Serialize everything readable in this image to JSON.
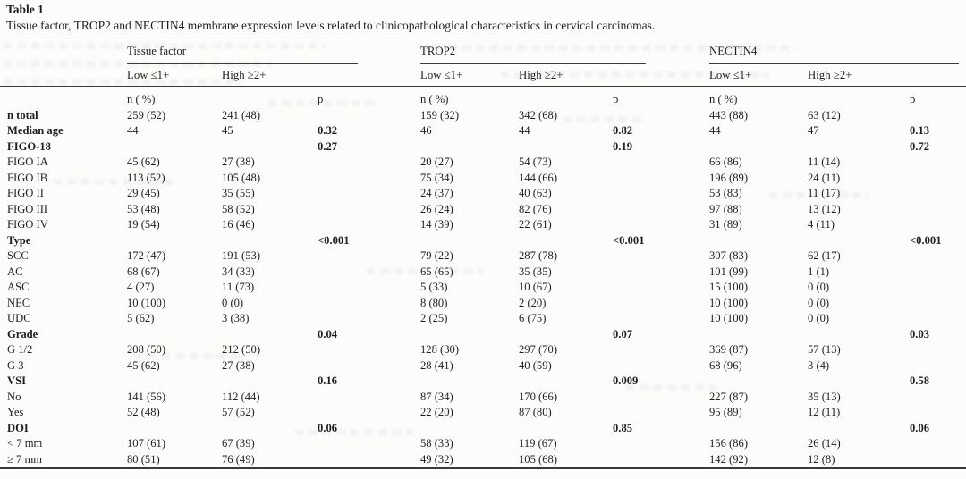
{
  "caption": {
    "title": "Table 1",
    "subtitle": "Tissue factor, TROP2 and NECTIN4 membrane expression levels related to clinicopathological characteristics in cervical carcinomas."
  },
  "groups": [
    {
      "name": "Tissue factor",
      "sub": [
        "Low ≤1+",
        "High ≥2+"
      ]
    },
    {
      "name": "TROP2",
      "sub": [
        "Low ≤1+",
        "High ≥2+"
      ]
    },
    {
      "name": "NECTIN4",
      "sub": [
        "Low ≤1+",
        "High ≥2+"
      ]
    }
  ],
  "chart_data": {
    "type": "table",
    "title": "Tissue factor, TROP2 and NECTIN4 membrane expression levels related to clinicopathological characteristics in cervical carcinomas.",
    "columns": [
      "label",
      "tf_low",
      "tf_high",
      "tf_p",
      "trop2_low",
      "trop2_high",
      "trop2_p",
      "n4_low",
      "n4_high",
      "n4_p"
    ]
  },
  "table": {
    "rows": [
      {
        "bold": false,
        "cells": [
          "",
          "n ( %)",
          "",
          "p",
          "n ( %)",
          "",
          "p",
          "n ( %)",
          "",
          "p"
        ]
      },
      {
        "bold": true,
        "cells": [
          "n total",
          "259 (52)",
          "241 (48)",
          "",
          "159 (32)",
          "342 (68)",
          "",
          "443 (88)",
          "63 (12)",
          ""
        ]
      },
      {
        "bold": true,
        "cells": [
          "Median age",
          "44",
          "45",
          "0.32",
          "46",
          "44",
          "0.82",
          "44",
          "47",
          "0.13"
        ]
      },
      {
        "bold": true,
        "cells": [
          "FIGO-18",
          "",
          "",
          "0.27",
          "",
          "",
          "0.19",
          "",
          "",
          "0.72"
        ]
      },
      {
        "bold": false,
        "cells": [
          "FIGO IA",
          "45 (62)",
          "27 (38)",
          "",
          "20 (27)",
          "54 (73)",
          "",
          "66 (86)",
          "11 (14)",
          ""
        ]
      },
      {
        "bold": false,
        "cells": [
          "FIGO IB",
          "113 (52)",
          "105 (48)",
          "",
          "75 (34)",
          "144 (66)",
          "",
          "196 (89)",
          "24 (11)",
          ""
        ]
      },
      {
        "bold": false,
        "cells": [
          "FIGO II",
          "29 (45)",
          "35 (55)",
          "",
          "24 (37)",
          "40 (63)",
          "",
          "53 (83)",
          "11 (17)",
          ""
        ]
      },
      {
        "bold": false,
        "cells": [
          "FIGO III",
          "53 (48)",
          "58 (52)",
          "",
          "26 (24)",
          "82 (76)",
          "",
          "97 (88)",
          "13 (12)",
          ""
        ]
      },
      {
        "bold": false,
        "cells": [
          "FIGO IV",
          "19 (54)",
          "16 (46)",
          "",
          "14 (39)",
          "22 (61)",
          "",
          "31 (89)",
          "4 (11)",
          ""
        ]
      },
      {
        "bold": true,
        "cells": [
          "Type",
          "",
          "",
          "<0.001",
          "",
          "",
          "<0.001",
          "",
          "",
          "<0.001"
        ]
      },
      {
        "bold": false,
        "cells": [
          "SCC",
          "172 (47)",
          "191 (53)",
          "",
          "79 (22)",
          "287 (78)",
          "",
          "307 (83)",
          "62 (17)",
          ""
        ]
      },
      {
        "bold": false,
        "cells": [
          "AC",
          "68 (67)",
          "34 (33)",
          "",
          "65 (65)",
          "35 (35)",
          "",
          "101 (99)",
          "1 (1)",
          ""
        ]
      },
      {
        "bold": false,
        "cells": [
          "ASC",
          "4 (27)",
          "11 (73)",
          "",
          "5 (33)",
          "10 (67)",
          "",
          "15 (100)",
          "0 (0)",
          ""
        ]
      },
      {
        "bold": false,
        "cells": [
          "NEC",
          "10 (100)",
          "0 (0)",
          "",
          "8 (80)",
          "2 (20)",
          "",
          "10 (100)",
          "0 (0)",
          ""
        ]
      },
      {
        "bold": false,
        "cells": [
          "UDC",
          "5 (62)",
          "3 (38)",
          "",
          "2 (25)",
          "6 (75)",
          "",
          "10 (100)",
          "0 (0)",
          ""
        ]
      },
      {
        "bold": true,
        "cells": [
          "Grade",
          "",
          "",
          "0.04",
          "",
          "",
          "0.07",
          "",
          "",
          "0.03"
        ]
      },
      {
        "bold": false,
        "cells": [
          "G 1/2",
          "208 (50)",
          "212 (50)",
          "",
          "128 (30)",
          "297 (70)",
          "",
          "369 (87)",
          "57 (13)",
          ""
        ]
      },
      {
        "bold": false,
        "cells": [
          "G 3",
          "45 (62)",
          "27 (38)",
          "",
          "28 (41)",
          "40 (59)",
          "",
          "68 (96)",
          "3 (4)",
          ""
        ]
      },
      {
        "bold": true,
        "cells": [
          "VSI",
          "",
          "",
          "0.16",
          "",
          "",
          "0.009",
          "",
          "",
          "0.58"
        ]
      },
      {
        "bold": false,
        "cells": [
          "No",
          "141 (56)",
          "112 (44)",
          "",
          "87 (34)",
          "170 (66)",
          "",
          "227 (87)",
          "35 (13)",
          ""
        ]
      },
      {
        "bold": false,
        "cells": [
          "Yes",
          "52 (48)",
          "57 (52)",
          "",
          "22 (20)",
          "87 (80)",
          "",
          "95 (89)",
          "12 (11)",
          ""
        ]
      },
      {
        "bold": true,
        "cells": [
          "DOI",
          "",
          "",
          "0.06",
          "",
          "",
          "0.85",
          "",
          "",
          "0.06"
        ]
      },
      {
        "bold": false,
        "cells": [
          "< 7 mm",
          "107 (61)",
          "67 (39)",
          "",
          "58 (33)",
          "119 (67)",
          "",
          "156 (86)",
          "26 (14)",
          ""
        ]
      },
      {
        "bold": false,
        "cells": [
          "≥ 7 mm",
          "80 (51)",
          "76 (49)",
          "",
          "49 (32)",
          "105 (68)",
          "",
          "142 (92)",
          "12 (8)",
          ""
        ]
      }
    ]
  },
  "colors": {
    "text": "#1e1e1e",
    "rule_dark": "#3a3a38",
    "rule_light": "#8f8f8a",
    "background": "#fcfcfa"
  }
}
